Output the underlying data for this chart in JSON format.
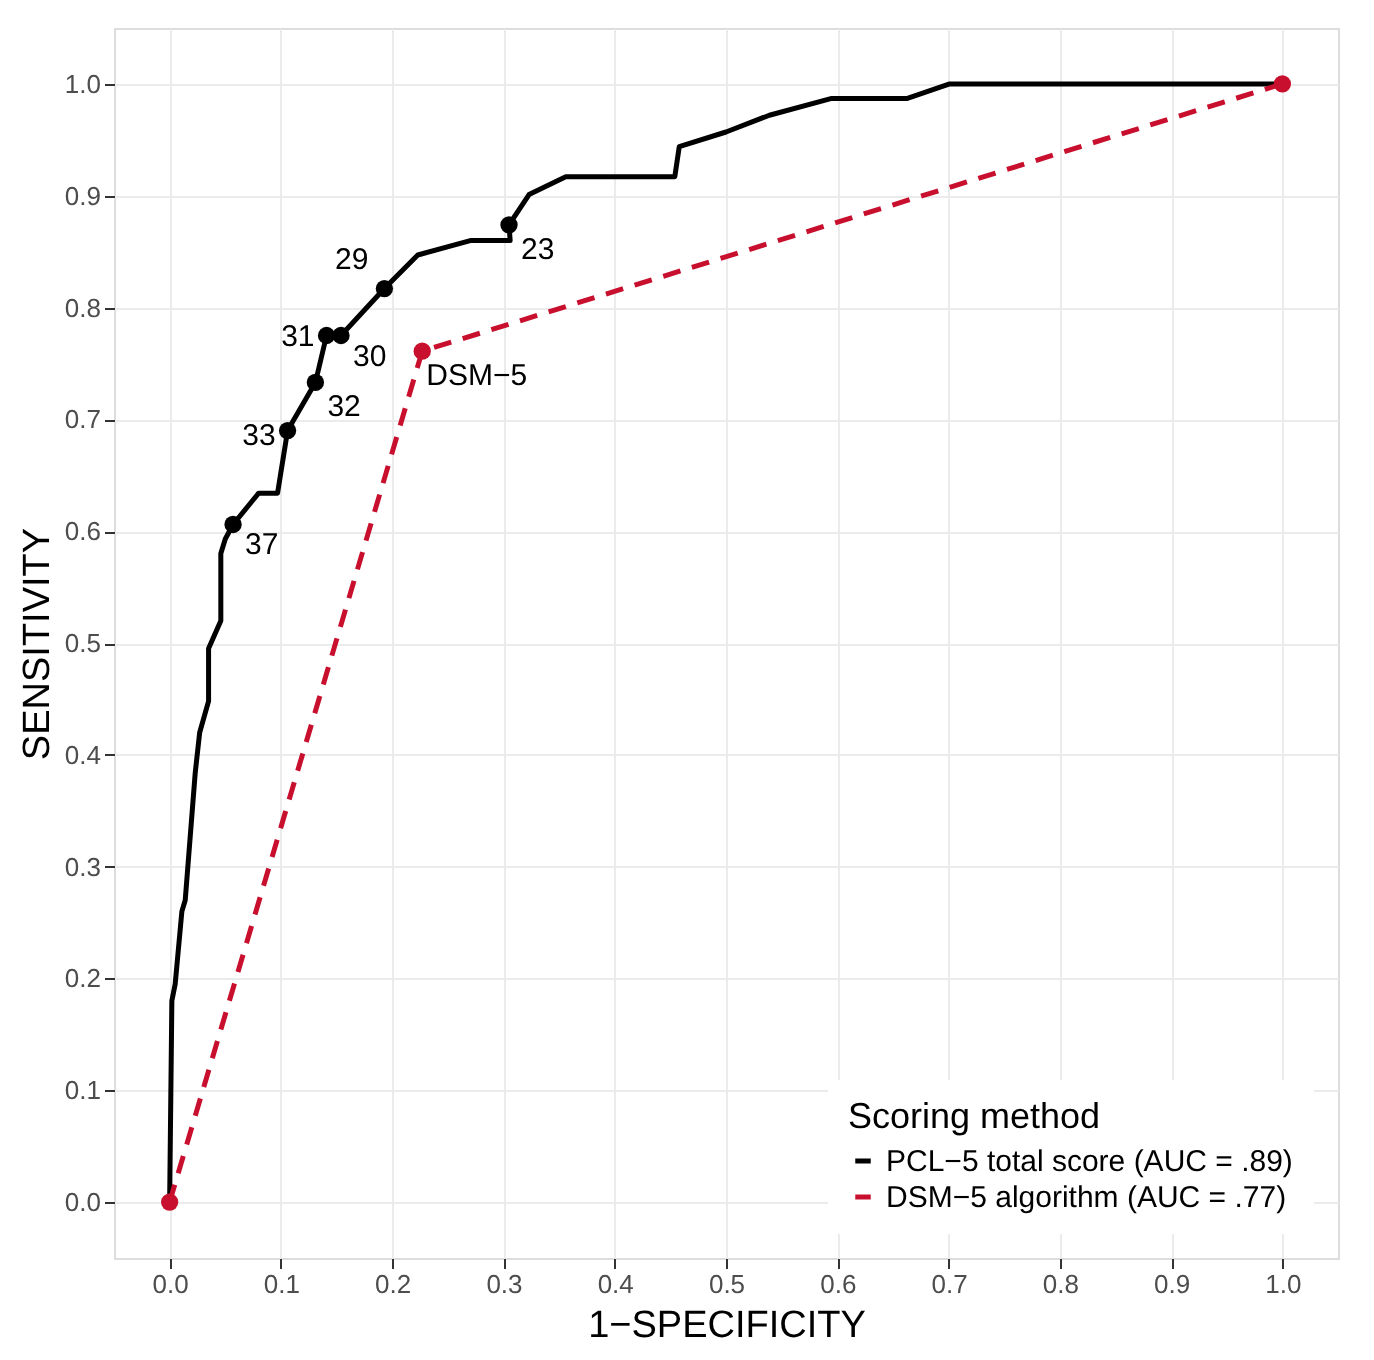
{
  "chart_data": {
    "type": "line",
    "xlabel": "1−SPECIFICITY",
    "ylabel": "SENSITIVITY",
    "legend_title": "Scoring method",
    "xlim": [
      -0.05,
      1.05
    ],
    "ylim": [
      -0.05,
      1.05
    ],
    "xticks": [
      {
        "value": 0,
        "label": "0.0"
      },
      0.1,
      0.2,
      0.3,
      0.4,
      0.5,
      0.6,
      0.7,
      0.8,
      0.9,
      {
        "value": 1,
        "label": "1.0"
      }
    ],
    "yticks": [
      {
        "value": 0,
        "label": "0.0"
      },
      0.1,
      0.2,
      0.3,
      0.4,
      0.5,
      0.6,
      0.7,
      0.8,
      0.9,
      {
        "value": 1,
        "label": "1.0"
      }
    ],
    "grid": true,
    "legend": "bottom right",
    "series": [
      {
        "name": "PCL−5 total score (AUC = .89)",
        "color": "#000000",
        "type": "line",
        "line_style": "solid",
        "marker": "none",
        "x": [
          0,
          0.002,
          0.005,
          0.011,
          0.014,
          0.023,
          0.027,
          0.035,
          0.035,
          0.046,
          0.046,
          0.05,
          0.057,
          0.08,
          0.097,
          0.106,
          0.131,
          0.141,
          0.154,
          0.193,
          0.223,
          0.271,
          0.306,
          0.305,
          0.323,
          0.356,
          0.454,
          0.458,
          0.5,
          0.539,
          0.595,
          0.663,
          0.701,
          1.0
        ],
        "values": [
          0,
          0.18,
          0.195,
          0.26,
          0.27,
          0.384,
          0.42,
          0.448,
          0.495,
          0.52,
          0.58,
          0.593,
          0.606,
          0.634,
          0.634,
          0.69,
          0.733,
          0.775,
          0.775,
          0.817,
          0.847,
          0.86,
          0.86,
          0.874,
          0.901,
          0.917,
          0.917,
          0.944,
          0.957,
          0.972,
          0.987,
          0.987,
          1.0,
          1.0
        ]
      },
      {
        "color": "#000000",
        "type": "scatter",
        "marker": "circle",
        "x": [
          0.057,
          0.106,
          0.131,
          0.141,
          0.154,
          0.193,
          0.305
        ],
        "values": [
          0.606,
          0.69,
          0.733,
          0.775,
          0.775,
          0.817,
          0.874
        ]
      },
      {
        "name": "DSM−5 algorithm (AUC = .77)",
        "color": "#c8102e",
        "type": "line",
        "line_style": "dashed",
        "marker": "circle",
        "x": [
          0,
          0.227,
          1.0
        ],
        "values": [
          0,
          0.761,
          1.0
        ]
      }
    ],
    "annotations": [
      {
        "text": "37",
        "x": 0.057,
        "y": 0.606
      },
      {
        "text": "33",
        "x": 0.106,
        "y": 0.69
      },
      {
        "text": "32",
        "x": 0.131,
        "y": 0.733
      },
      {
        "text": "31",
        "x": 0.141,
        "y": 0.775
      },
      {
        "text": "30",
        "x": 0.154,
        "y": 0.775
      },
      {
        "text": "29",
        "x": 0.193,
        "y": 0.817
      },
      {
        "text": "23",
        "x": 0.305,
        "y": 0.874
      },
      {
        "text": "DSM−5",
        "x": 0.227,
        "y": 0.761
      }
    ]
  }
}
